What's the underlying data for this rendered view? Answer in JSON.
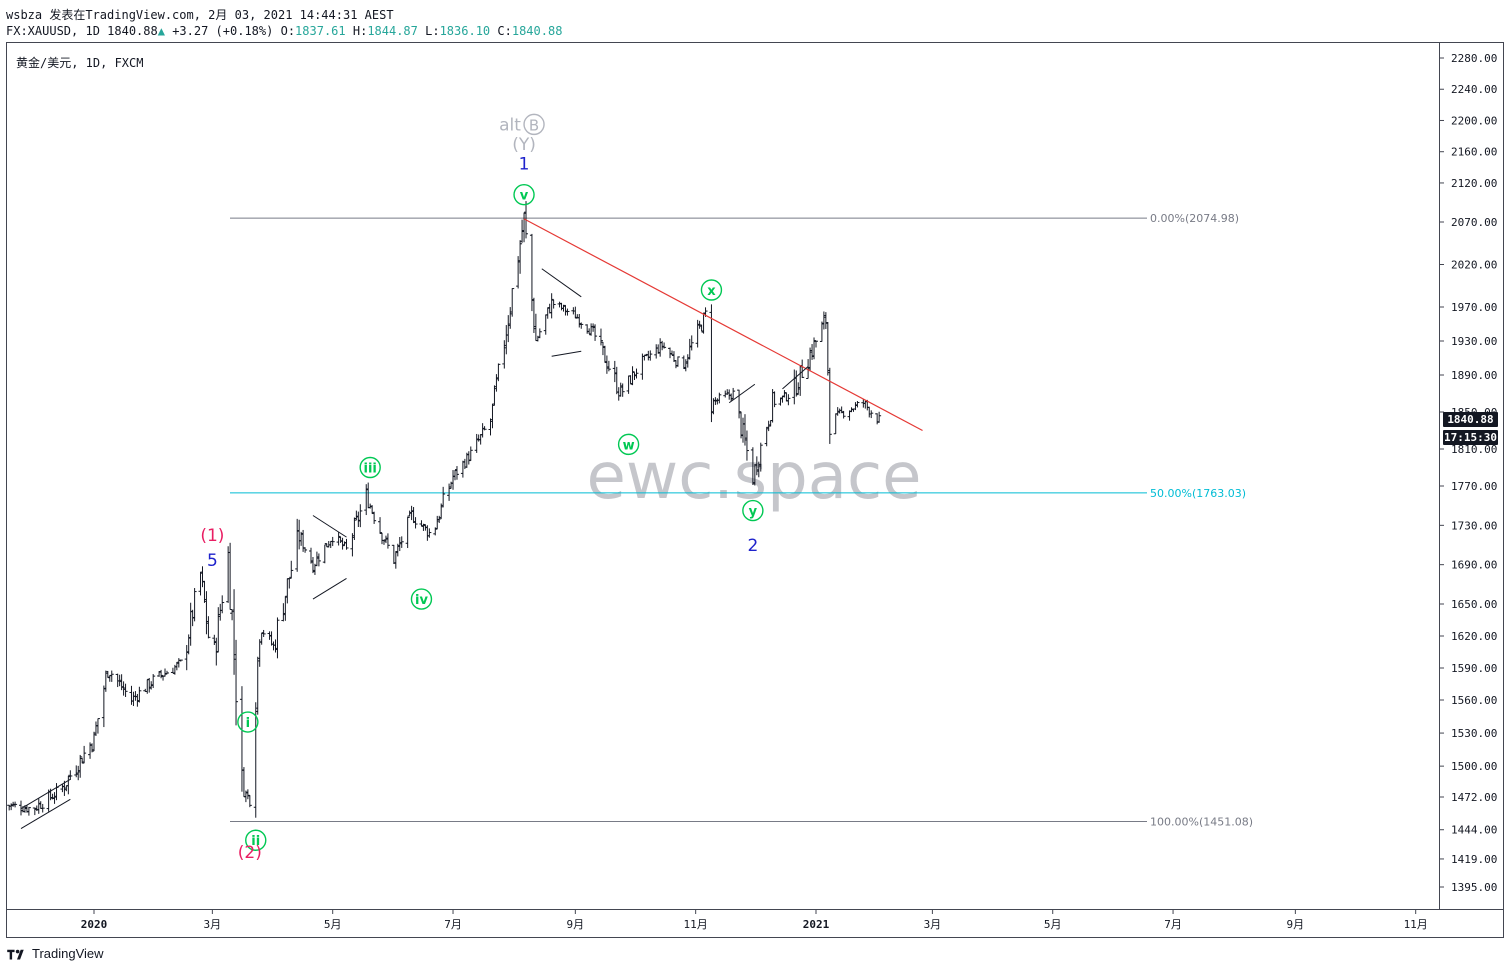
{
  "header": {
    "line1": "wsbza 发表在TradingView.com, 2月 03, 2021 14:44:31 AEST",
    "symbol": "FX:XAUUSD, 1D",
    "last": "1840.88",
    "change_arrow": "▲",
    "change": "+3.27 (+0.18%)",
    "o_label": "O:",
    "o_val": "1837.61",
    "h_label": "H:",
    "h_val": "1844.87",
    "l_label": "L:",
    "l_val": "1836.10",
    "c_label": "C:",
    "c_val": "1840.88"
  },
  "symbol_label": "黄金/美元, 1D, FXCM",
  "watermark": "ewc.space",
  "footer": {
    "brand": "TradingView"
  },
  "price_tag": {
    "price": "1840.88",
    "countdown": "17:15:30",
    "color": "#131722"
  },
  "colors": {
    "bars": "#131722",
    "trendline": "#e53935",
    "fib_gray": "#787b86",
    "fib_teal": "#00bcd4",
    "wave_green": "#00c853",
    "wave_blue": "#1e22cc",
    "wave_magenta": "#e91e63",
    "alt_gray": "#b2b5be"
  },
  "chart_data": {
    "type": "line",
    "title": "黄金/美元, 1D, FXCM",
    "xlabel": "",
    "ylabel": "",
    "ylim": [
      1370,
      2300
    ],
    "price_ticks": [
      "2280.00",
      "2240.00",
      "2200.00",
      "2160.00",
      "2120.00",
      "2070.00",
      "2020.00",
      "1970.00",
      "1930.00",
      "1890.00",
      "1850.00",
      "1810.00",
      "1770.00",
      "1730.00",
      "1690.00",
      "1650.00",
      "1620.00",
      "1590.00",
      "1560.00",
      "1530.00",
      "1500.00",
      "1472.00",
      "1444.00",
      "1419.00",
      "1395.00"
    ],
    "time_ticks": [
      "2020",
      "3月",
      "5月",
      "7月",
      "9月",
      "11月",
      "2021",
      "3月",
      "5月",
      "7月",
      "9月",
      "11月"
    ],
    "series": [
      {
        "x": [
          "2019-11-18",
          "2019-12-01",
          "2019-12-15",
          "2020-01-01",
          "2020-01-08",
          "2020-01-20",
          "2020-02-01",
          "2020-02-15",
          "2020-02-24",
          "2020-03-01",
          "2020-03-09",
          "2020-03-16",
          "2020-03-20",
          "2020-03-25",
          "2020-04-01",
          "2020-04-14",
          "2020-04-21",
          "2020-05-01",
          "2020-05-08",
          "2020-05-18",
          "2020-05-25",
          "2020-06-01",
          "2020-06-10",
          "2020-06-20",
          "2020-07-01",
          "2020-07-10",
          "2020-07-20",
          "2020-07-27",
          "2020-08-06",
          "2020-08-12",
          "2020-08-20",
          "2020-09-01",
          "2020-09-10",
          "2020-09-24",
          "2020-10-05",
          "2020-10-15",
          "2020-10-25",
          "2020-11-06",
          "2020-11-09",
          "2020-11-20",
          "2020-11-30",
          "2020-12-10",
          "2020-12-20",
          "2021-01-06",
          "2021-01-08",
          "2021-01-15",
          "2021-01-25",
          "2021-02-02"
        ],
        "values": [
          1465,
          1462,
          1478,
          1525,
          1590,
          1560,
          1580,
          1595,
          1680,
          1590,
          1700,
          1480,
          1470,
          1630,
          1610,
          1720,
          1690,
          1720,
          1705,
          1760,
          1725,
          1695,
          1740,
          1720,
          1780,
          1805,
          1840,
          1930,
          2074,
          1930,
          1975,
          1960,
          1940,
          1870,
          1905,
          1925,
          1900,
          1960,
          1860,
          1870,
          1780,
          1860,
          1870,
          1955,
          1840,
          1850,
          1860,
          1841
        ]
      }
    ],
    "fibonacci": [
      {
        "level": "0.00%",
        "price": "2074.98",
        "label": "0.00%(2074.98)"
      },
      {
        "level": "50.00%",
        "price": "1763.03",
        "label": "50.00%(1763.03)"
      },
      {
        "level": "100.00%",
        "price": "1451.08",
        "label": "100.00%(1451.08)"
      }
    ],
    "wave_labels": [
      {
        "text": "alt",
        "circled": "B",
        "x": "2020-08-06",
        "y": 2195,
        "color": "alt_gray"
      },
      {
        "text": "(Y)",
        "x": "2020-08-06",
        "y": 2170,
        "color": "alt_gray"
      },
      {
        "text": "1",
        "x": "2020-08-06",
        "y": 2145,
        "color": "wave_blue"
      },
      {
        "text": "v",
        "circled": "v",
        "x": "2020-08-06",
        "y": 2105,
        "color": "wave_green"
      },
      {
        "text": "x",
        "circled": "x",
        "x": "2020-11-09",
        "y": 1990,
        "color": "wave_green"
      },
      {
        "text": "w",
        "circled": "w",
        "x": "2020-09-28",
        "y": 1815,
        "color": "wave_green"
      },
      {
        "text": "y",
        "circled": "y",
        "x": "2020-11-30",
        "y": 1745,
        "color": "wave_green"
      },
      {
        "text": "2",
        "x": "2020-11-30",
        "y": 1710,
        "color": "wave_blue"
      },
      {
        "text": "iii",
        "circled": "iii",
        "x": "2020-05-20",
        "y": 1790,
        "color": "wave_green"
      },
      {
        "text": "iv",
        "circled": "iv",
        "x": "2020-06-15",
        "y": 1655,
        "color": "wave_green"
      },
      {
        "text": "(1)",
        "x": "2020-03-01",
        "y": 1720,
        "color": "wave_magenta"
      },
      {
        "text": "5",
        "x": "2020-03-01",
        "y": 1695,
        "color": "wave_blue"
      },
      {
        "text": "i",
        "circled": "i",
        "x": "2020-03-19",
        "y": 1540,
        "color": "wave_green"
      },
      {
        "text": "ii",
        "circled": "ii",
        "x": "2020-03-23",
        "y": 1435,
        "color": "wave_green"
      },
      {
        "text": "(2)",
        "x": "2020-03-20",
        "y": 1425,
        "color": "wave_magenta"
      }
    ],
    "trendline": {
      "from": {
        "x": "2020-08-06",
        "y": 2074
      },
      "to": {
        "x": "2021-02-24",
        "y": 1830
      }
    },
    "grid": false,
    "legend": "none"
  }
}
